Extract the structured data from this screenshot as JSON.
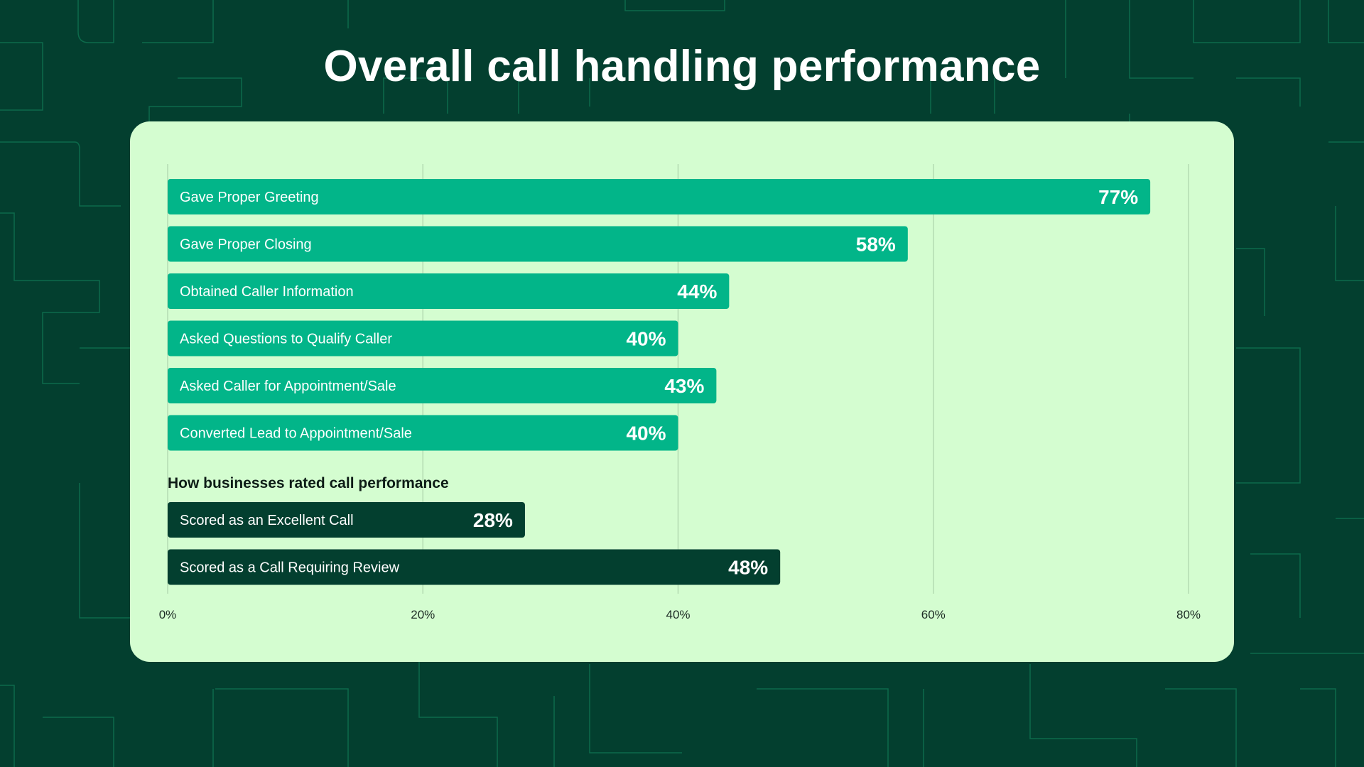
{
  "colors": {
    "background": "#033f2f",
    "pattern_stroke": "#0d6a4b",
    "card": "#d4fdd0",
    "primary_bar": "#02b589",
    "secondary_bar": "#033f2f",
    "text_white": "#ffffff",
    "grid": "#b4dcb2"
  },
  "chart_data": {
    "type": "bar",
    "orientation": "horizontal",
    "title": "Overall call handling performance",
    "xlim": [
      0,
      80
    ],
    "xticks": [
      0,
      20,
      40,
      60,
      80
    ],
    "xtick_labels": [
      "0%",
      "20%",
      "40%",
      "60%",
      "80%"
    ],
    "grid": true,
    "groups": [
      {
        "heading": "",
        "color": "#02b589",
        "items": [
          {
            "label": "Gave Proper Greeting",
            "value": 77,
            "display": "77%"
          },
          {
            "label": "Gave Proper Closing",
            "value": 58,
            "display": "58%"
          },
          {
            "label": "Obtained Caller Information",
            "value": 44,
            "display": "44%"
          },
          {
            "label": "Asked Questions to Qualify Caller",
            "value": 40,
            "display": "40%"
          },
          {
            "label": "Asked Caller for Appointment/Sale",
            "value": 43,
            "display": "43%"
          },
          {
            "label": "Converted Lead to Appointment/Sale",
            "value": 40,
            "display": "40%"
          }
        ]
      },
      {
        "heading": "How businesses rated call performance",
        "color": "#033f2f",
        "items": [
          {
            "label": "Scored as an Excellent Call",
            "value": 28,
            "display": "28%"
          },
          {
            "label": "Scored as a Call Requiring Review",
            "value": 48,
            "display": "48%"
          }
        ]
      }
    ]
  }
}
